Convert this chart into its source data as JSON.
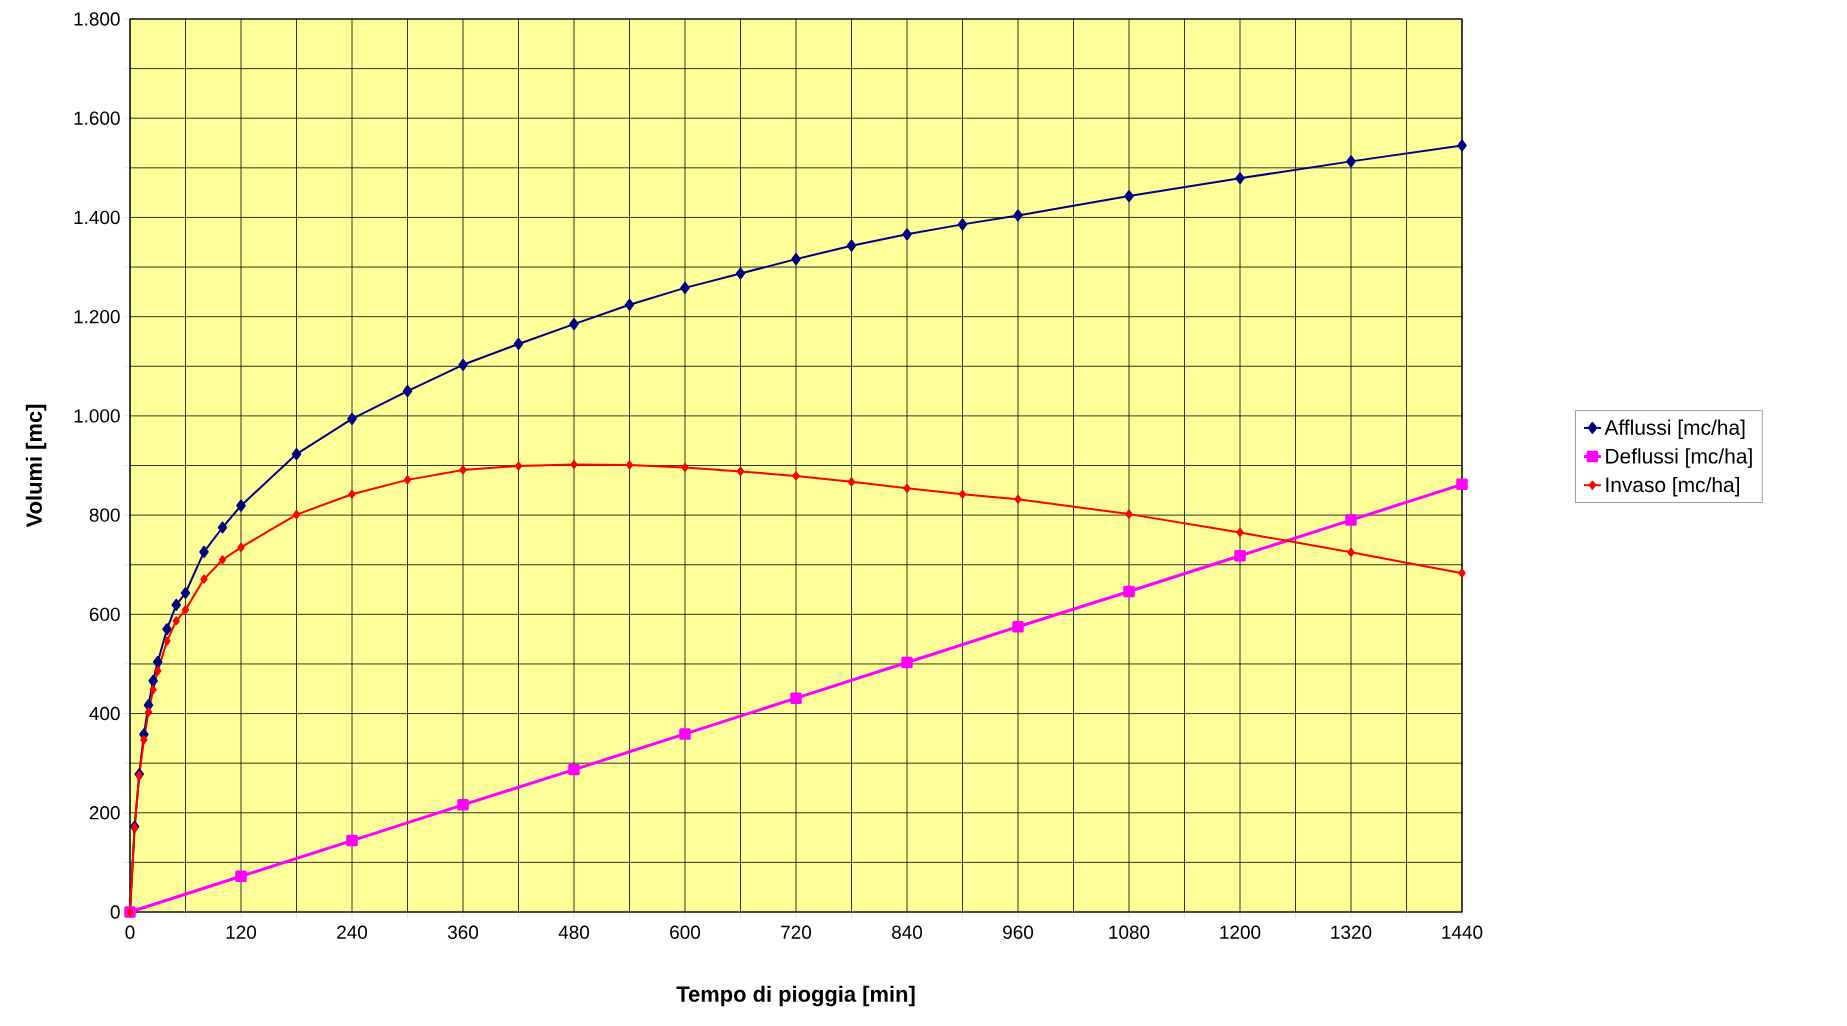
{
  "chart_data": {
    "type": "line",
    "xlabel": "Tempo di pioggia [min]",
    "ylabel": "Volumi [mc]",
    "xlim": [
      0,
      1440
    ],
    "ylim": [
      0,
      1800
    ],
    "xticks": [
      0,
      {
        "value": 60,
        "label": null
      },
      120,
      {
        "value": 180,
        "label": null
      },
      240,
      {
        "value": 300,
        "label": null
      },
      360,
      {
        "value": 420,
        "label": null
      },
      480,
      {
        "value": 540,
        "label": null
      },
      600,
      {
        "value": 660,
        "label": null
      },
      720,
      {
        "value": 780,
        "label": null
      },
      840,
      {
        "value": 900,
        "label": null
      },
      960,
      {
        "value": 1020,
        "label": null
      },
      1080,
      {
        "value": 1140,
        "label": null
      },
      1200,
      {
        "value": 1260,
        "label": null
      },
      1320,
      {
        "value": 1380,
        "label": null
      },
      1440
    ],
    "yticks": [
      0,
      {
        "value": 100,
        "label": null
      },
      200,
      {
        "value": 300,
        "label": null
      },
      400,
      {
        "value": 500,
        "label": null
      },
      600,
      {
        "value": 700,
        "label": null
      },
      800,
      {
        "value": 900,
        "label": null
      },
      {
        "value": 1000,
        "label": "1.000"
      },
      {
        "value": 1100,
        "label": null
      },
      {
        "value": 1200,
        "label": "1.200"
      },
      {
        "value": 1300,
        "label": null
      },
      {
        "value": 1400,
        "label": "1.400"
      },
      {
        "value": 1500,
        "label": null
      },
      {
        "value": 1600,
        "label": "1.600"
      },
      {
        "value": 1700,
        "label": null
      },
      {
        "value": 1800,
        "label": "1.800"
      }
    ],
    "grid": true,
    "legend": "right",
    "series": [
      {
        "name": "Afflussi [mc/ha]",
        "color": "#000080",
        "marker": "diamond",
        "x": [
          0,
          5,
          10,
          15,
          20,
          25,
          30,
          40,
          50,
          60,
          80,
          100,
          120,
          180,
          240,
          300,
          360,
          420,
          480,
          540,
          600,
          660,
          720,
          780,
          840,
          900,
          960,
          1080,
          1200,
          1320,
          1440
        ],
        "values": [
          0,
          172,
          278,
          358,
          417,
          466,
          504,
          570,
          619,
          643,
          726,
          775,
          819,
          923,
          994,
          1050,
          1103,
          1145,
          1185,
          1224,
          1258,
          1287,
          1316,
          1343,
          1366,
          1386,
          1404,
          1443,
          1479,
          1513,
          1545
        ]
      },
      {
        "name": "Deflussi [mc/ha]",
        "color": "#ff00ff",
        "marker": "square",
        "x": [
          0,
          120,
          240,
          360,
          480,
          600,
          720,
          840,
          960,
          1080,
          1200,
          1320,
          1440
        ],
        "values": [
          0,
          72,
          144,
          216,
          287,
          359,
          431,
          503,
          575,
          646,
          718,
          790,
          862
        ]
      },
      {
        "name": "Invaso [mc/ha]",
        "color": "#ff0000",
        "marker": "diamond",
        "x": [
          0,
          5,
          10,
          15,
          20,
          25,
          30,
          40,
          50,
          60,
          80,
          100,
          120,
          180,
          240,
          300,
          360,
          420,
          480,
          540,
          600,
          660,
          720,
          780,
          840,
          900,
          960,
          1080,
          1200,
          1320,
          1440
        ],
        "values": [
          0,
          170,
          275,
          347,
          403,
          448,
          486,
          546,
          587,
          609,
          671,
          710,
          735,
          801,
          842,
          871,
          891,
          899,
          902,
          901,
          896,
          888,
          879,
          867,
          854,
          842,
          832,
          802,
          765,
          725,
          683
        ]
      }
    ]
  }
}
